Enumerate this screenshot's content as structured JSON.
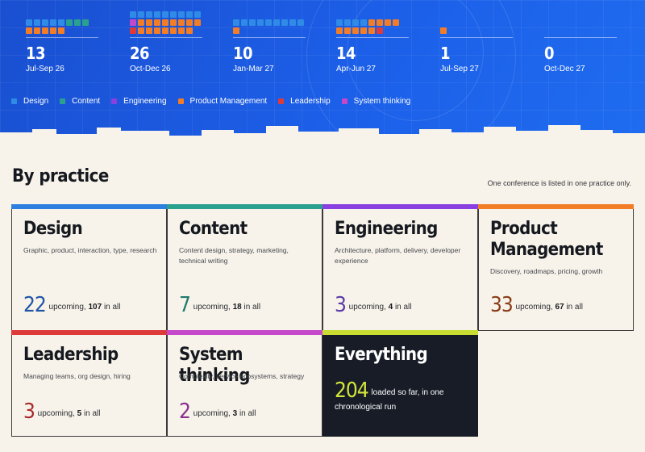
{
  "hero": {
    "quarters": [
      {
        "count": "13",
        "label": "Jul-Sep 26"
      },
      {
        "count": "26",
        "label": "Oct-Dec 26"
      },
      {
        "count": "10",
        "label": "Jan-Mar 27"
      },
      {
        "count": "14",
        "label": "Apr-Jun 27"
      },
      {
        "count": "1",
        "label": "Jul-Sep 27"
      },
      {
        "count": "0",
        "label": "Oct-Dec 27"
      }
    ],
    "legend": [
      {
        "label": "Design",
        "color": "#2f8be6"
      },
      {
        "label": "Content",
        "color": "#2aa18f"
      },
      {
        "label": "Engineering",
        "color": "#8a3fe0"
      },
      {
        "label": "Product Management",
        "color": "#f27d26"
      },
      {
        "label": "Leadership",
        "color": "#de3a3a"
      },
      {
        "label": "System thinking",
        "color": "#c448c9"
      }
    ]
  },
  "section": {
    "title": "By practice",
    "note": "One conference is listed in one practice only."
  },
  "cards": [
    {
      "title": "Design",
      "description": "Graphic, product, interaction, type, research",
      "upcoming": "22",
      "upcoming_label": "upcoming,",
      "all": "107",
      "all_label": "in all",
      "accent": "#2f7fe0",
      "number_color": "#1f55a8"
    },
    {
      "title": "Content",
      "description": "Content design, strategy, marketing, technical writing",
      "upcoming": "7",
      "upcoming_label": "upcoming,",
      "all": "18",
      "all_label": "in all",
      "accent": "#2aa18f",
      "number_color": "#1d7a6c"
    },
    {
      "title": "Engineering",
      "description": "Architecture, platform, delivery, developer experience",
      "upcoming": "3",
      "upcoming_label": "upcoming,",
      "all": "4",
      "all_label": "in all",
      "accent": "#8a3fe0",
      "number_color": "#5b3aa8"
    },
    {
      "title": "Product Management",
      "description": "Discovery, roadmaps, pricing, growth",
      "upcoming": "33",
      "upcoming_label": "upcoming,",
      "all": "67",
      "all_label": "in all",
      "accent": "#f27d26",
      "number_color": "#8a3d17"
    },
    {
      "title": "Leadership",
      "description": "Managing teams, org design, hiring",
      "upcoming": "3",
      "upcoming_label": "upcoming,",
      "all": "5",
      "all_label": "in all",
      "accent": "#de3a3a",
      "number_color": "#a62a2a"
    },
    {
      "title": "System thinking",
      "description": "Complexity, service ecosystems, strategy",
      "upcoming": "2",
      "upcoming_label": "upcoming,",
      "all": "3",
      "all_label": "in all",
      "accent": "#c448c9",
      "number_color": "#8a2e8f"
    },
    {
      "title": "Everything",
      "upcoming": "204",
      "rest": "loaded so far, in one chronological run",
      "accent": "#c8dc32",
      "number_color": "#d4e53a"
    }
  ]
}
